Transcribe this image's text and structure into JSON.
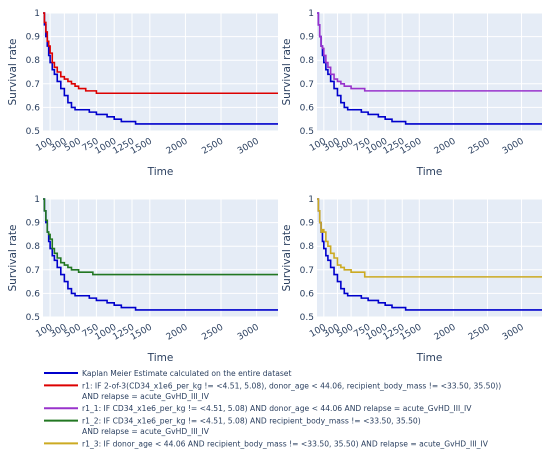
{
  "chart_data": [
    {
      "type": "line",
      "xlabel": "Time",
      "ylabel": "Survival rate",
      "xlim": [
        0,
        3300
      ],
      "ylim": [
        0.5,
        1.0
      ],
      "x_ticks": [
        100,
        300,
        500,
        750,
        1000,
        1250,
        1500,
        2000,
        2500,
        3000
      ],
      "y_ticks": [
        0.5,
        0.6,
        0.7,
        0.8,
        0.9,
        1
      ],
      "series": [
        {
          "name": "Kaplan Meier Estimate calculated on the entire dataset",
          "color": "#0000cc",
          "points": [
            [
              0,
              1.0
            ],
            [
              20,
              0.95
            ],
            [
              40,
              0.9
            ],
            [
              60,
              0.86
            ],
            [
              80,
              0.82
            ],
            [
              100,
              0.79
            ],
            [
              130,
              0.76
            ],
            [
              160,
              0.74
            ],
            [
              200,
              0.71
            ],
            [
              250,
              0.68
            ],
            [
              300,
              0.65
            ],
            [
              350,
              0.62
            ],
            [
              400,
              0.6
            ],
            [
              450,
              0.59
            ],
            [
              550,
              0.59
            ],
            [
              650,
              0.58
            ],
            [
              750,
              0.57
            ],
            [
              900,
              0.56
            ],
            [
              1000,
              0.55
            ],
            [
              1100,
              0.54
            ],
            [
              1250,
              0.54
            ],
            [
              1300,
              0.53
            ],
            [
              3300,
              0.53
            ]
          ]
        },
        {
          "name": "r1: IF 2-of-3(CD34_x1e6_per_kg != <4.51, 5.08), donor_age < 44.06, recipient_body_mass != <33.50, 35.50)) AND relapse = acute_GvHD_III_IV",
          "color": "#dd0000",
          "points": [
            [
              0,
              1.0
            ],
            [
              20,
              0.96
            ],
            [
              40,
              0.92
            ],
            [
              60,
              0.88
            ],
            [
              80,
              0.86
            ],
            [
              100,
              0.83
            ],
            [
              130,
              0.79
            ],
            [
              160,
              0.77
            ],
            [
              200,
              0.75
            ],
            [
              250,
              0.73
            ],
            [
              300,
              0.72
            ],
            [
              350,
              0.71
            ],
            [
              400,
              0.7
            ],
            [
              450,
              0.69
            ],
            [
              500,
              0.68
            ],
            [
              600,
              0.67
            ],
            [
              700,
              0.67
            ],
            [
              750,
              0.66
            ],
            [
              3300,
              0.66
            ]
          ]
        }
      ]
    },
    {
      "type": "line",
      "xlabel": "Time",
      "ylabel": "Survival rate",
      "xlim": [
        0,
        3300
      ],
      "ylim": [
        0.5,
        1.0
      ],
      "x_ticks": [
        100,
        300,
        500,
        750,
        1000,
        1250,
        1500,
        2000,
        2500,
        3000
      ],
      "y_ticks": [
        0.5,
        0.6,
        0.7,
        0.8,
        0.9,
        1
      ],
      "series": [
        {
          "name": "Kaplan Meier Estimate calculated on the entire dataset",
          "color": "#0000cc",
          "points": [
            [
              0,
              1.0
            ],
            [
              20,
              0.95
            ],
            [
              40,
              0.9
            ],
            [
              60,
              0.86
            ],
            [
              80,
              0.82
            ],
            [
              100,
              0.79
            ],
            [
              130,
              0.76
            ],
            [
              160,
              0.74
            ],
            [
              200,
              0.71
            ],
            [
              250,
              0.68
            ],
            [
              300,
              0.65
            ],
            [
              350,
              0.62
            ],
            [
              400,
              0.6
            ],
            [
              450,
              0.59
            ],
            [
              550,
              0.59
            ],
            [
              650,
              0.58
            ],
            [
              750,
              0.57
            ],
            [
              900,
              0.56
            ],
            [
              1000,
              0.55
            ],
            [
              1100,
              0.54
            ],
            [
              1250,
              0.54
            ],
            [
              1300,
              0.53
            ],
            [
              3300,
              0.53
            ]
          ]
        },
        {
          "name": "r1_1: IF CD34_x1e6_per_kg != <4.51, 5.08) AND donor_age < 44.06 AND relapse = acute_GvHD_III_IV",
          "color": "#9933cc",
          "points": [
            [
              0,
              1.0
            ],
            [
              20,
              0.95
            ],
            [
              40,
              0.9
            ],
            [
              60,
              0.86
            ],
            [
              80,
              0.85
            ],
            [
              100,
              0.82
            ],
            [
              130,
              0.79
            ],
            [
              160,
              0.77
            ],
            [
              200,
              0.74
            ],
            [
              250,
              0.72
            ],
            [
              300,
              0.71
            ],
            [
              350,
              0.7
            ],
            [
              400,
              0.69
            ],
            [
              500,
              0.68
            ],
            [
              600,
              0.68
            ],
            [
              700,
              0.67
            ],
            [
              3300,
              0.67
            ]
          ]
        }
      ]
    },
    {
      "type": "line",
      "xlabel": "Time",
      "ylabel": "Survival rate",
      "xlim": [
        0,
        3300
      ],
      "ylim": [
        0.5,
        1.0
      ],
      "x_ticks": [
        100,
        300,
        500,
        750,
        1000,
        1250,
        1500,
        2000,
        2500,
        3000
      ],
      "y_ticks": [
        0.5,
        0.6,
        0.7,
        0.8,
        0.9,
        1
      ],
      "series": [
        {
          "name": "Kaplan Meier Estimate calculated on the entire dataset",
          "color": "#0000cc",
          "points": [
            [
              0,
              1.0
            ],
            [
              20,
              0.95
            ],
            [
              40,
              0.9
            ],
            [
              60,
              0.86
            ],
            [
              80,
              0.82
            ],
            [
              100,
              0.79
            ],
            [
              130,
              0.76
            ],
            [
              160,
              0.74
            ],
            [
              200,
              0.71
            ],
            [
              250,
              0.68
            ],
            [
              300,
              0.65
            ],
            [
              350,
              0.62
            ],
            [
              400,
              0.6
            ],
            [
              450,
              0.59
            ],
            [
              550,
              0.59
            ],
            [
              650,
              0.58
            ],
            [
              750,
              0.57
            ],
            [
              900,
              0.56
            ],
            [
              1000,
              0.55
            ],
            [
              1100,
              0.54
            ],
            [
              1250,
              0.54
            ],
            [
              1300,
              0.53
            ],
            [
              3300,
              0.53
            ]
          ]
        },
        {
          "name": "r1_2: IF CD34_x1e6_per_kg != <4.51, 5.08) AND recipient_body_mass != <33.50, 35.50) AND relapse = acute_GvHD_III_IV",
          "color": "#227722",
          "points": [
            [
              0,
              1.0
            ],
            [
              20,
              0.95
            ],
            [
              40,
              0.91
            ],
            [
              60,
              0.86
            ],
            [
              80,
              0.85
            ],
            [
              100,
              0.83
            ],
            [
              130,
              0.79
            ],
            [
              160,
              0.77
            ],
            [
              200,
              0.75
            ],
            [
              250,
              0.73
            ],
            [
              300,
              0.72
            ],
            [
              350,
              0.71
            ],
            [
              400,
              0.7
            ],
            [
              500,
              0.69
            ],
            [
              600,
              0.69
            ],
            [
              700,
              0.68
            ],
            [
              3300,
              0.68
            ]
          ]
        }
      ]
    },
    {
      "type": "line",
      "xlabel": "Time",
      "ylabel": "Survival rate",
      "xlim": [
        0,
        3300
      ],
      "ylim": [
        0.5,
        1.0
      ],
      "x_ticks": [
        100,
        300,
        500,
        750,
        1000,
        1250,
        1500,
        2000,
        2500,
        3000
      ],
      "y_ticks": [
        0.5,
        0.6,
        0.7,
        0.8,
        0.9,
        1
      ],
      "series": [
        {
          "name": "Kaplan Meier Estimate calculated on the entire dataset",
          "color": "#0000cc",
          "points": [
            [
              0,
              1.0
            ],
            [
              20,
              0.95
            ],
            [
              40,
              0.9
            ],
            [
              60,
              0.86
            ],
            [
              80,
              0.82
            ],
            [
              100,
              0.79
            ],
            [
              130,
              0.76
            ],
            [
              160,
              0.74
            ],
            [
              200,
              0.71
            ],
            [
              250,
              0.68
            ],
            [
              300,
              0.65
            ],
            [
              350,
              0.62
            ],
            [
              400,
              0.6
            ],
            [
              450,
              0.59
            ],
            [
              550,
              0.59
            ],
            [
              650,
              0.58
            ],
            [
              750,
              0.57
            ],
            [
              900,
              0.56
            ],
            [
              1000,
              0.55
            ],
            [
              1100,
              0.54
            ],
            [
              1250,
              0.54
            ],
            [
              1300,
              0.53
            ],
            [
              3300,
              0.53
            ]
          ]
        },
        {
          "name": "r1_3: IF donor_age < 44.06 AND recipient_body_mass != <33.50, 35.50) AND relapse = acute_GvHD_III_IV",
          "color": "#ccaa22",
          "points": [
            [
              0,
              1.0
            ],
            [
              20,
              0.95
            ],
            [
              40,
              0.9
            ],
            [
              60,
              0.86
            ],
            [
              80,
              0.87
            ],
            [
              100,
              0.86
            ],
            [
              130,
              0.82
            ],
            [
              160,
              0.8
            ],
            [
              200,
              0.77
            ],
            [
              250,
              0.75
            ],
            [
              300,
              0.72
            ],
            [
              350,
              0.71
            ],
            [
              400,
              0.7
            ],
            [
              500,
              0.69
            ],
            [
              600,
              0.69
            ],
            [
              700,
              0.67
            ],
            [
              3300,
              0.67
            ]
          ]
        }
      ]
    }
  ],
  "legend": {
    "entries": [
      {
        "color": "#0000cc",
        "lines": [
          "Kaplan Meier Estimate calculated on the entire dataset"
        ]
      },
      {
        "color": "#dd0000",
        "lines": [
          "r1: IF 2-of-3(CD34_x1e6_per_kg != <4.51, 5.08), donor_age < 44.06, recipient_body_mass != <33.50, 35.50))",
          "AND relapse = acute_GvHD_III_IV"
        ]
      },
      {
        "color": "#9933cc",
        "lines": [
          "r1_1: IF CD34_x1e6_per_kg != <4.51, 5.08) AND donor_age < 44.06 AND relapse = acute_GvHD_III_IV"
        ]
      },
      {
        "color": "#227722",
        "lines": [
          "r1_2: IF CD34_x1e6_per_kg != <4.51, 5.08) AND recipient_body_mass != <33.50, 35.50)",
          "AND relapse = acute_GvHD_III_IV"
        ]
      },
      {
        "color": "#ccaa22",
        "lines": [
          "r1_3: IF donor_age < 44.06 AND recipient_body_mass != <33.50, 35.50) AND relapse = acute_GvHD_III_IV"
        ]
      }
    ]
  },
  "colors": {
    "plot_background": "#e5ecf6",
    "gridline": "#ffffff",
    "text": "#2a3f5f"
  }
}
